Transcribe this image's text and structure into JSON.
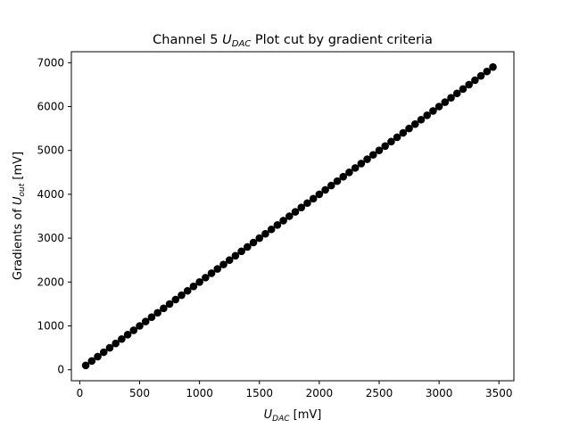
{
  "chart_data": {
    "type": "scatter",
    "title": {
      "pre": "Channel 5 ",
      "sym": "U",
      "sub": "DAC",
      "post": " Plot cut by gradient criteria"
    },
    "xlabel": {
      "sym": "U",
      "sub": "DAC",
      "post": " [mV]"
    },
    "ylabel": {
      "pre": "Gradients of ",
      "sym": "U",
      "sub": "out",
      "post": " [mV]"
    },
    "xlim": [
      -70,
      3625
    ],
    "ylim": [
      -250,
      7250
    ],
    "xticks": [
      0,
      500,
      1000,
      1500,
      2000,
      2500,
      3000,
      3500
    ],
    "yticks": [
      0,
      1000,
      2000,
      3000,
      4000,
      5000,
      6000,
      7000
    ],
    "grid": false,
    "series": [
      {
        "color": "#000000",
        "marker": "circle",
        "x_start": 50,
        "x_step": 50,
        "count": 69,
        "y_at_x_start": 100,
        "y_slope": 2.0
      }
    ]
  }
}
